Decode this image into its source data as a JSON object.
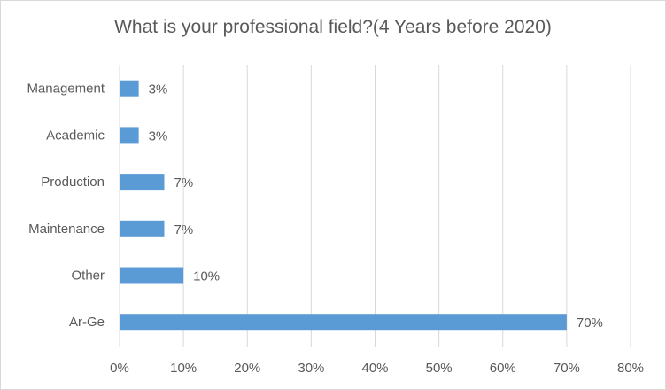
{
  "chart_data": {
    "type": "bar",
    "orientation": "horizontal",
    "title": "What is your professional field?(4 Years before 2020)",
    "categories": [
      "Management",
      "Academic",
      "Production",
      "Maintenance",
      "Other",
      "Ar-Ge"
    ],
    "values": [
      3,
      3,
      7,
      7,
      10,
      70
    ],
    "data_labels": [
      "3%",
      "3%",
      "7%",
      "7%",
      "10%",
      "70%"
    ],
    "xlim": [
      0,
      80
    ],
    "x_ticks": [
      0,
      10,
      20,
      30,
      40,
      50,
      60,
      70,
      80
    ],
    "x_tick_labels": [
      "0%",
      "10%",
      "20%",
      "30%",
      "40%",
      "50%",
      "60%",
      "70%",
      "80%"
    ],
    "grid": "vertical",
    "legend": "none",
    "bar_color": "#5b9bd5",
    "grid_color": "#d9d9d9",
    "text_color": "#595959"
  }
}
